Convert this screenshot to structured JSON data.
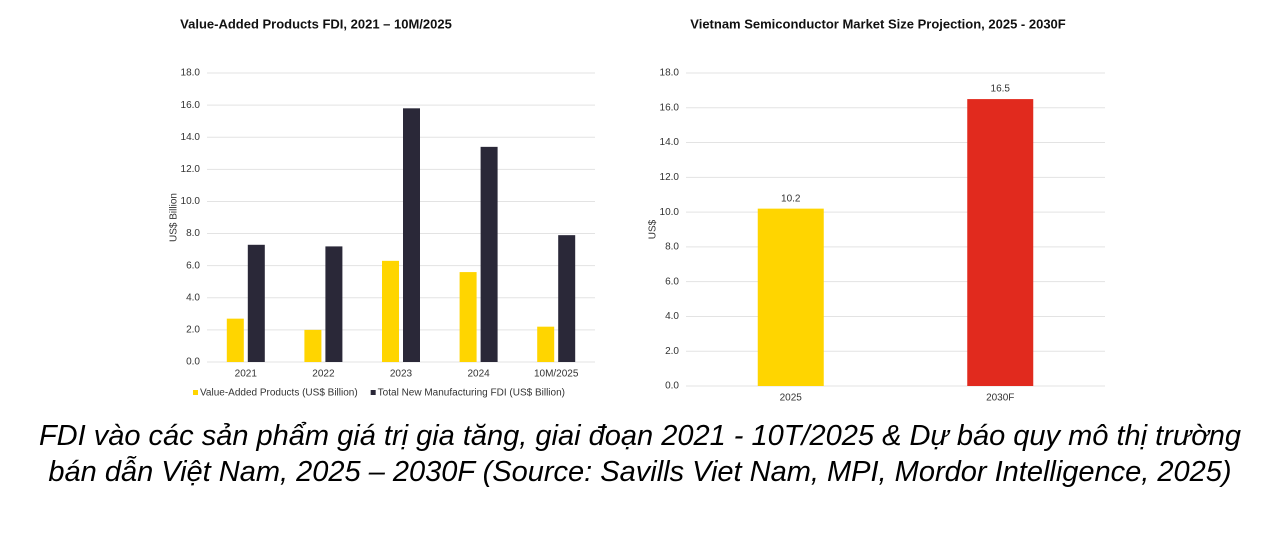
{
  "chart_data": [
    {
      "type": "grouped-bar",
      "title": "Value-Added Products FDI, 2021 – 10M/2025",
      "ylabel": "US$ Billion",
      "categories": [
        "2021",
        "2022",
        "2023",
        "2024",
        "10M/2025"
      ],
      "series": [
        {
          "name": "Value-Added Products (US$ Billion)",
          "color": "#ffd500",
          "values": [
            2.7,
            2.0,
            6.3,
            5.6,
            2.2
          ]
        },
        {
          "name": "Total New Manufacturing FDI (US$ Billion)",
          "color": "#2a2838",
          "values": [
            7.3,
            7.2,
            15.8,
            13.4,
            7.9
          ]
        }
      ],
      "ylim": [
        0,
        18
      ],
      "yticks": [
        {
          "value": 0,
          "label": "0.0"
        },
        {
          "value": 2,
          "label": "2.0"
        },
        {
          "value": 4,
          "label": "4.0"
        },
        {
          "value": 6,
          "label": "6.0"
        },
        {
          "value": 8,
          "label": "8.0"
        },
        {
          "value": 10,
          "label": "10.0"
        },
        {
          "value": 12,
          "label": "12.0"
        },
        {
          "value": 14,
          "label": "14.0"
        },
        {
          "value": 16,
          "label": "16.0"
        },
        {
          "value": 18,
          "label": "18.0"
        }
      ],
      "grid": true,
      "legend": "bottom"
    },
    {
      "type": "bar",
      "title": "Vietnam Semiconductor Market Size Projection, 2025 - 2030F",
      "ylabel": "US$",
      "categories": [
        "2025",
        "2030F"
      ],
      "values": [
        10.2,
        16.5
      ],
      "colors": [
        "#ffd500",
        "#e12a1e"
      ],
      "ylim": [
        0,
        18
      ],
      "yticks": [
        {
          "value": 0,
          "label": "0.0"
        },
        {
          "value": 2,
          "label": "2.0"
        },
        {
          "value": 4,
          "label": "4.0"
        },
        {
          "value": 6,
          "label": "6.0"
        },
        {
          "value": 8,
          "label": "8.0"
        },
        {
          "value": 10,
          "label": "10.0"
        },
        {
          "value": 12,
          "label": "12.0"
        },
        {
          "value": 14,
          "label": "14.0"
        },
        {
          "value": 16,
          "label": "16.0"
        },
        {
          "value": 18,
          "label": "18.0"
        }
      ],
      "grid": true
    }
  ],
  "caption": "FDI vào các sản phẩm giá trị gia tăng, giai đoạn 2021 - 10T/2025 & Dự báo quy mô thị trường bán dẫn Việt Nam, 2025 – 2030F (Source: Savills Viet Nam, MPI, Mordor Intelligence, 2025)"
}
